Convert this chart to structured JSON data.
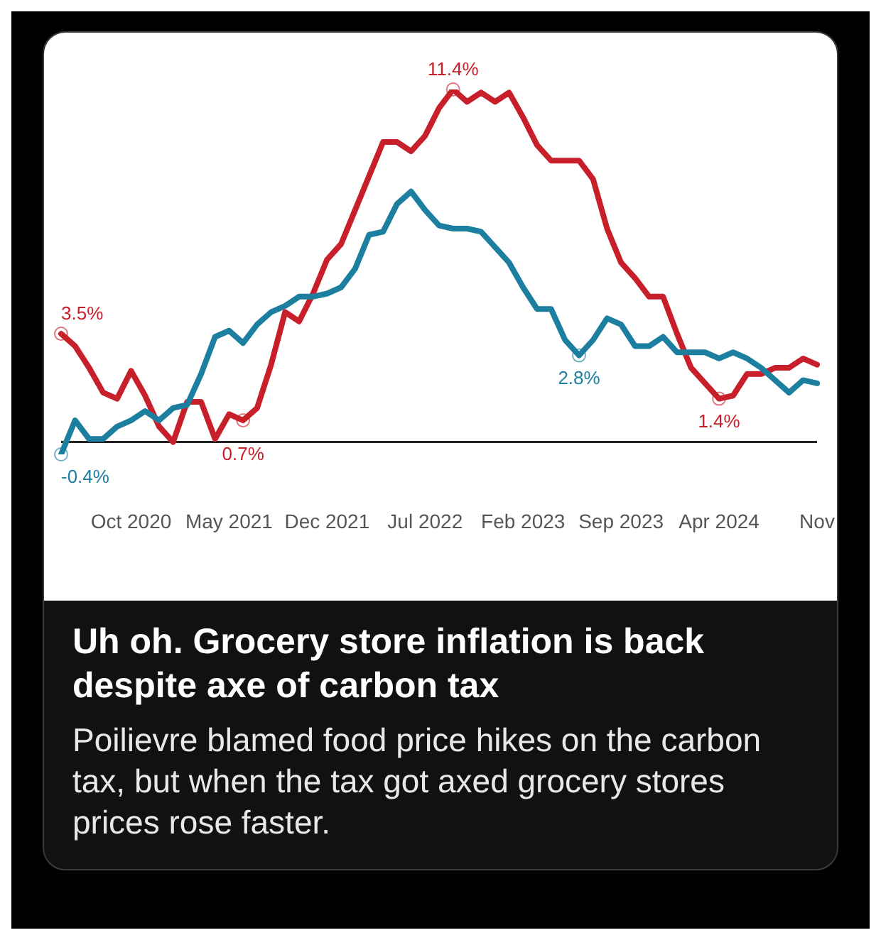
{
  "chart_data": {
    "type": "line",
    "title": "Uh oh. Grocery store inflation is back despite axe of carbon tax",
    "subtitle": "Poilievre blamed food price hikes on the carbon tax, but when the tax got axed grocery stores prices rose faster.",
    "categories": [
      null,
      null,
      null,
      null,
      null,
      "Oct 2020",
      null,
      null,
      null,
      null,
      null,
      null,
      "May 2021",
      null,
      null,
      null,
      null,
      null,
      null,
      "Dec 2021",
      null,
      null,
      null,
      null,
      null,
      null,
      "Jul 2022",
      null,
      null,
      null,
      null,
      null,
      null,
      "Feb 2023",
      null,
      null,
      null,
      null,
      null,
      null,
      "Sep 2023",
      null,
      null,
      null,
      null,
      null,
      null,
      "Apr 2024",
      null,
      null,
      null,
      null,
      null,
      null,
      "Nov"
    ],
    "series": [
      {
        "color": "#c8202a",
        "values": [
          3.5,
          3.1,
          2.4,
          1.6,
          1.4,
          2.3,
          1.5,
          0.5,
          0.0,
          1.3,
          1.3,
          0.1,
          0.9,
          0.7,
          1.1,
          2.5,
          4.2,
          3.9,
          4.8,
          5.9,
          6.4,
          7.5,
          8.6,
          9.7,
          9.7,
          9.4,
          9.9,
          10.8,
          11.4,
          11.0,
          11.3,
          11.0,
          11.3,
          10.5,
          9.6,
          9.1,
          9.1,
          9.1,
          8.5,
          6.9,
          5.8,
          5.3,
          4.7,
          4.7,
          3.5,
          2.4,
          1.9,
          1.4,
          1.5,
          2.2,
          2.2,
          2.4,
          2.4,
          2.7,
          2.5
        ],
        "value_labels": [
          "3.5%",
          null,
          null,
          null,
          null,
          null,
          null,
          null,
          null,
          null,
          null,
          null,
          null,
          "0.7%",
          null,
          null,
          null,
          null,
          null,
          null,
          null,
          null,
          null,
          null,
          null,
          null,
          null,
          null,
          "11.4%",
          null,
          null,
          null,
          null,
          null,
          null,
          null,
          null,
          null,
          null,
          null,
          null,
          null,
          null,
          null,
          null,
          null,
          null,
          "1.4%",
          null,
          null,
          null,
          null,
          null,
          null,
          null
        ]
      },
      {
        "color": "#1d7fa0",
        "values": [
          -0.4,
          0.7,
          0.1,
          0.1,
          0.5,
          0.7,
          1.0,
          0.7,
          1.1,
          1.2,
          2.2,
          3.4,
          3.6,
          3.2,
          3.8,
          4.2,
          4.4,
          4.7,
          4.7,
          4.8,
          5.0,
          5.6,
          6.7,
          6.8,
          7.7,
          8.1,
          7.5,
          7.0,
          6.9,
          6.9,
          6.8,
          6.3,
          5.8,
          5.0,
          4.3,
          4.3,
          3.3,
          2.8,
          3.3,
          4.0,
          3.8,
          3.1,
          3.1,
          3.4,
          2.9,
          2.9,
          2.9,
          2.7,
          2.9,
          2.7,
          2.4,
          2.0,
          1.6,
          2.0,
          1.9
        ],
        "value_labels": [
          "-0.4%",
          null,
          null,
          null,
          null,
          null,
          null,
          null,
          null,
          null,
          null,
          null,
          null,
          null,
          null,
          null,
          null,
          null,
          null,
          null,
          null,
          null,
          null,
          null,
          null,
          null,
          null,
          null,
          null,
          null,
          null,
          null,
          null,
          null,
          null,
          null,
          null,
          "2.8%",
          null,
          null,
          null,
          null,
          null,
          null,
          null,
          null,
          null,
          null,
          null,
          null,
          null,
          null,
          null,
          null,
          null
        ]
      }
    ],
    "tick_labels": "x",
    "legend": false,
    "line_style": "solid",
    "ref_lines": [
      {
        "axis": "y",
        "value": 0,
        "color": "#222222"
      }
    ]
  }
}
